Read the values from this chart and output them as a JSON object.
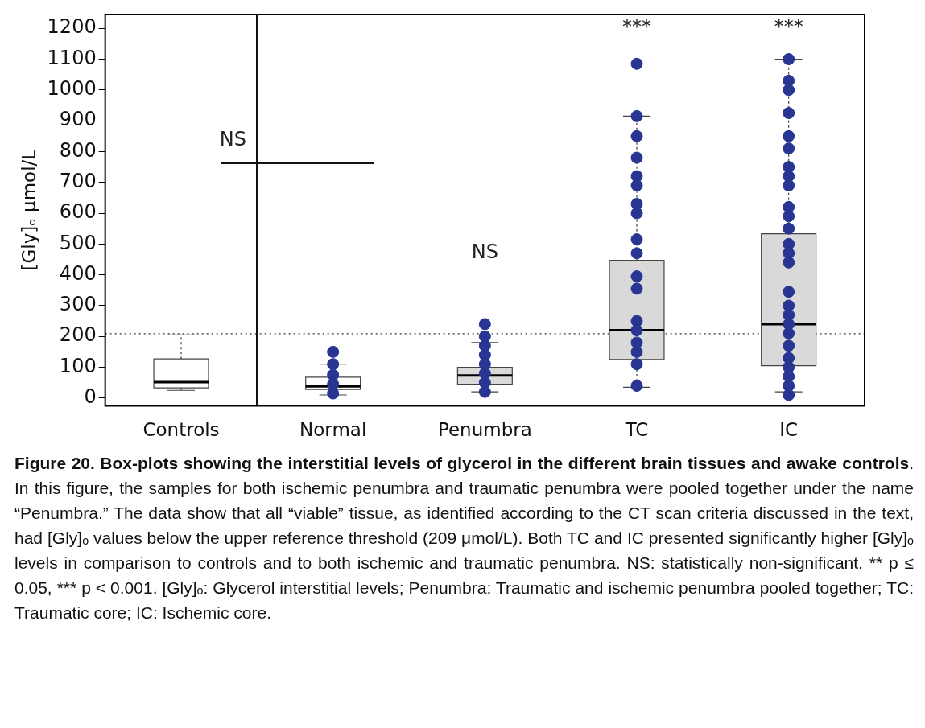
{
  "chart_data": {
    "type": "box",
    "title": "Figure 20. Box-plots showing the interstitial levels of glycerol in the different brain tissues and  awake controls",
    "ylabel": "[Gly]ₒ μmol/L",
    "categories": [
      "Controls",
      "Normal",
      "Penumbra",
      "TC",
      "IC"
    ],
    "colors": [
      "#ffffff",
      "#ffffff",
      "#d9d9d9",
      "#d9d9d9",
      "#d9d9d9"
    ],
    "boxes": [
      {
        "low": 25,
        "q1": 33,
        "median": 52,
        "q3": 127,
        "high": 205
      },
      {
        "low": 10,
        "q1": 28,
        "median": 38,
        "q3": 68,
        "high": 110
      },
      {
        "low": 20,
        "q1": 45,
        "median": 73,
        "q3": 100,
        "high": 180
      },
      {
        "low": 35,
        "q1": 125,
        "median": 220,
        "q3": 447,
        "high": 915
      },
      {
        "low": 20,
        "q1": 105,
        "median": 240,
        "q3": 533,
        "high": 1100
      }
    ],
    "series": [
      {
        "type": "scatter",
        "color": "#283593",
        "x": [
          "Normal",
          "Normal",
          "Normal",
          "Normal",
          "Normal",
          "Penumbra",
          "Penumbra",
          "Penumbra",
          "Penumbra",
          "Penumbra",
          "Penumbra",
          "Penumbra",
          "Penumbra",
          "TC",
          "TC",
          "TC",
          "TC",
          "TC",
          "TC",
          "TC",
          "TC",
          "TC",
          "TC",
          "TC",
          "TC",
          "TC",
          "TC",
          "TC",
          "TC",
          "TC",
          "TC",
          "IC",
          "IC",
          "IC",
          "IC",
          "IC",
          "IC",
          "IC",
          "IC",
          "IC",
          "IC",
          "IC",
          "IC",
          "IC",
          "IC",
          "IC",
          "IC",
          "IC",
          "IC",
          "IC",
          "IC",
          "IC",
          "IC",
          "IC",
          "IC",
          "IC",
          "IC"
        ],
        "values": [
          150,
          110,
          75,
          45,
          15,
          240,
          200,
          170,
          140,
          110,
          80,
          50,
          20,
          1085,
          915,
          850,
          780,
          720,
          690,
          630,
          600,
          515,
          470,
          395,
          355,
          250,
          220,
          180,
          150,
          110,
          40,
          1100,
          1030,
          1000,
          925,
          850,
          810,
          750,
          720,
          690,
          620,
          590,
          550,
          500,
          470,
          440,
          345,
          300,
          270,
          240,
          210,
          170,
          130,
          100,
          70,
          40,
          10
        ]
      }
    ],
    "ylim": [
      -25,
      1245
    ],
    "yticks": [
      0,
      100,
      200,
      300,
      400,
      500,
      600,
      700,
      800,
      900,
      1000,
      1100,
      1200
    ],
    "ref_lines": [
      {
        "axis": "y",
        "value": 209,
        "line_style": "dotted",
        "color": "#333333"
      }
    ],
    "marker": "circle",
    "legend": false,
    "grid": false,
    "annotations": [
      "NS",
      "NS",
      "***",
      "***",
      ". In this figure, the samples for both ischemic penumbra and traumatic penumbra were pooled together under the name “Penumbra.” The data show that all “viable” tissue, as identified according to the CT scan criteria discussed in the text, had [Gly]ₒ values below the upper reference threshold (209 μmol/L). Both TC and IC presented significantly higher [Gly]ₒ levels in comparison to controls and to both ischemic and traumatic penumbra. NS: statistically non-significant. ** p ≤ 0.05, *** p < 0.001. [Gly]ₒ: Glycerol interstitial levels; Penumbra: Traumatic and ischemic penumbra pooled together; TC: Traumatic core; IC: Ischemic core."
    ]
  }
}
